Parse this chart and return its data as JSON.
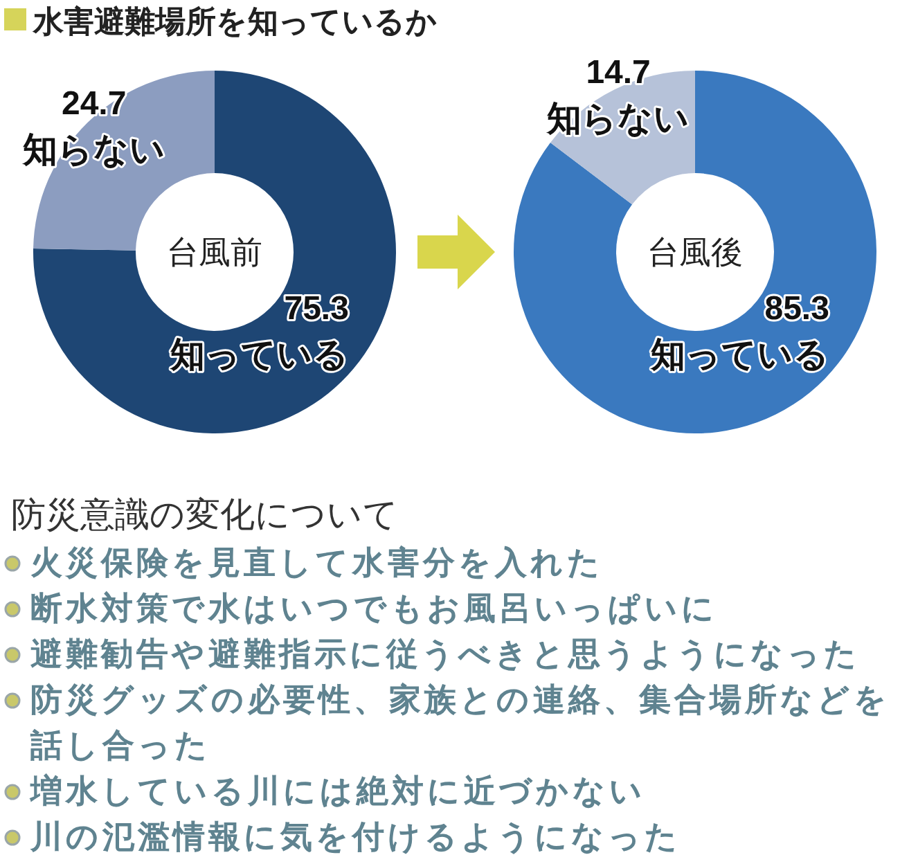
{
  "chart_data": [
    {
      "type": "donut",
      "title": "水害避難場所を知っているか",
      "subtitle": "台風前",
      "categories": [
        "知っている",
        "知らない"
      ],
      "values": [
        75.3,
        24.7
      ],
      "colors": [
        "#1e4674",
        "#8c9dc0"
      ],
      "data_labels": true
    },
    {
      "type": "donut",
      "subtitle": "台風後",
      "categories": [
        "知っている",
        "知らない"
      ],
      "values": [
        85.3,
        14.7
      ],
      "colors": [
        "#3a79bf",
        "#b6c2d9"
      ],
      "data_labels": true
    },
    {
      "type": "other",
      "title": "防災意識の変化について",
      "annotations": [
        "火災保険を見直して水害分を入れた",
        "断水対策で水はいつでもお風呂いっぱいに",
        "避難勧告や避難指示に従うべきと思うようになった",
        "防災グッズの必要性、家族との連絡、集合場所などを話し合った",
        "増水している川には絶対に近づかない",
        "川の氾濫情報に気を付けるようになった"
      ]
    }
  ]
}
